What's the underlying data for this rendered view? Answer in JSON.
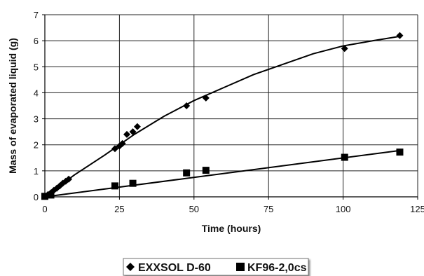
{
  "chart_data": {
    "type": "scatter",
    "xlabel": "Time (hours)",
    "ylabel": "Mass of evaporated liquid (g)",
    "xlim": [
      0,
      125
    ],
    "ylim": [
      0,
      7
    ],
    "x_ticks": [
      "0",
      "25",
      "50",
      "75",
      "100",
      "125"
    ],
    "y_ticks": [
      "0",
      "1",
      "2",
      "3",
      "4",
      "5",
      "6",
      "7"
    ],
    "grid": true,
    "legend_position": "bottom",
    "series": [
      {
        "name": "EXXSOL D-60",
        "marker": "diamond",
        "color": "#000000",
        "points": [
          {
            "x": 0,
            "y": 0.02
          },
          {
            "x": 1,
            "y": 0.08
          },
          {
            "x": 2,
            "y": 0.15
          },
          {
            "x": 3,
            "y": 0.25
          },
          {
            "x": 4,
            "y": 0.33
          },
          {
            "x": 5,
            "y": 0.42
          },
          {
            "x": 6,
            "y": 0.52
          },
          {
            "x": 7,
            "y": 0.6
          },
          {
            "x": 8,
            "y": 0.68
          },
          {
            "x": 23.5,
            "y": 1.85
          },
          {
            "x": 25,
            "y": 1.95
          },
          {
            "x": 26,
            "y": 2.05
          },
          {
            "x": 27.5,
            "y": 2.4
          },
          {
            "x": 29.5,
            "y": 2.5
          },
          {
            "x": 31,
            "y": 2.7
          },
          {
            "x": 47.5,
            "y": 3.5
          },
          {
            "x": 54,
            "y": 3.8
          },
          {
            "x": 100.5,
            "y": 5.7
          },
          {
            "x": 119,
            "y": 6.2
          }
        ],
        "trend": [
          {
            "x": 0,
            "y": 0
          },
          {
            "x": 10,
            "y": 0.85
          },
          {
            "x": 20,
            "y": 1.6
          },
          {
            "x": 30,
            "y": 2.4
          },
          {
            "x": 40,
            "y": 3.1
          },
          {
            "x": 50,
            "y": 3.7
          },
          {
            "x": 60,
            "y": 4.2
          },
          {
            "x": 70,
            "y": 4.7
          },
          {
            "x": 80,
            "y": 5.1
          },
          {
            "x": 90,
            "y": 5.5
          },
          {
            "x": 100,
            "y": 5.8
          },
          {
            "x": 110,
            "y": 6.0
          },
          {
            "x": 119,
            "y": 6.17
          }
        ]
      },
      {
        "name": "KF96-2,0cs",
        "marker": "square",
        "color": "#000000",
        "points": [
          {
            "x": 0,
            "y": 0.02
          },
          {
            "x": 2,
            "y": 0.07
          },
          {
            "x": 23.5,
            "y": 0.42
          },
          {
            "x": 29.5,
            "y": 0.52
          },
          {
            "x": 47.5,
            "y": 0.92
          },
          {
            "x": 54,
            "y": 1.02
          },
          {
            "x": 100.5,
            "y": 1.52
          },
          {
            "x": 119,
            "y": 1.72
          }
        ],
        "trend": [
          {
            "x": 0,
            "y": 0
          },
          {
            "x": 119,
            "y": 1.78
          }
        ]
      }
    ]
  }
}
